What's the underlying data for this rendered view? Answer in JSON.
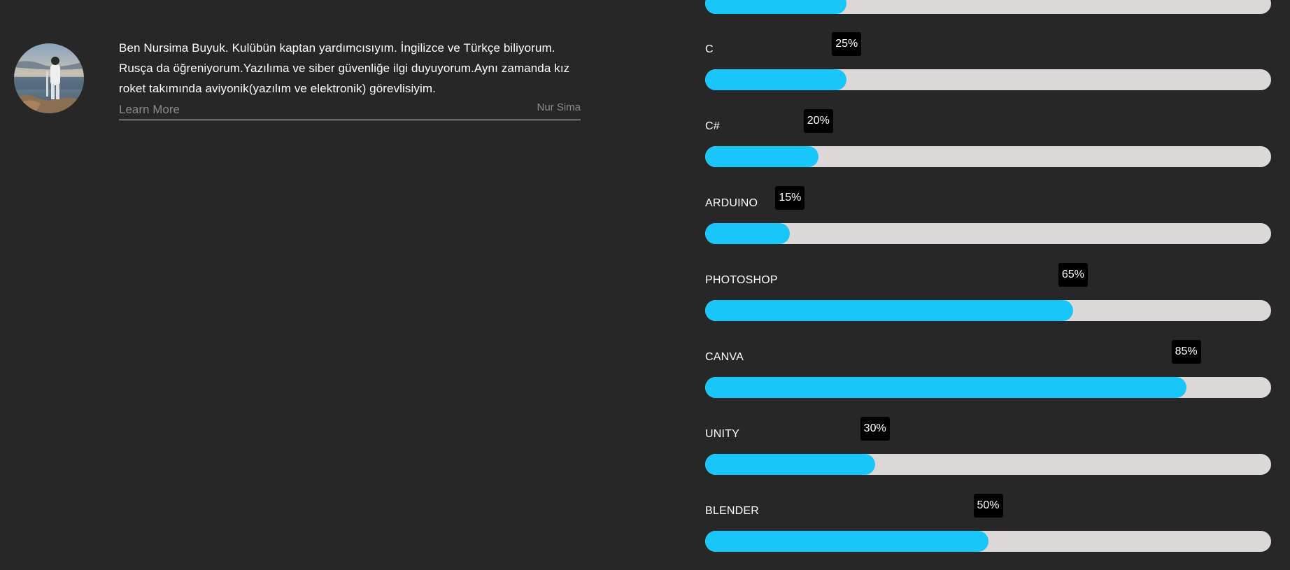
{
  "profile": {
    "bio": "Ben Nursima Buyuk. Kulübün kaptan yardımcısıyım. İngilizce ve Türkçe biliyorum. Rusça da öğreniyorum.Yazılıma ve siber güvenliğe ilgi duyuyorum.Aynı zamanda kız roket takımında aviyonik(yazılım ve elektronik) görevlisiyim.",
    "learn_more": "Learn More",
    "author": "Nur Sima"
  },
  "skills": [
    {
      "name": "",
      "percent": 25,
      "label": ""
    },
    {
      "name": "C",
      "percent": 25,
      "label": "25%"
    },
    {
      "name": "C#",
      "percent": 20,
      "label": "20%"
    },
    {
      "name": "ARDUINO",
      "percent": 15,
      "label": "15%"
    },
    {
      "name": "PHOTOSHOP",
      "percent": 65,
      "label": "65%"
    },
    {
      "name": "CANVA",
      "percent": 85,
      "label": "85%"
    },
    {
      "name": "UNITY",
      "percent": 30,
      "label": "30%"
    },
    {
      "name": "BLENDER",
      "percent": 50,
      "label": "50%"
    }
  ],
  "colors": {
    "background": "#272727",
    "bar_fill": "#19c6fa",
    "bar_track": "#ddd8d8",
    "badge": "#000000"
  }
}
